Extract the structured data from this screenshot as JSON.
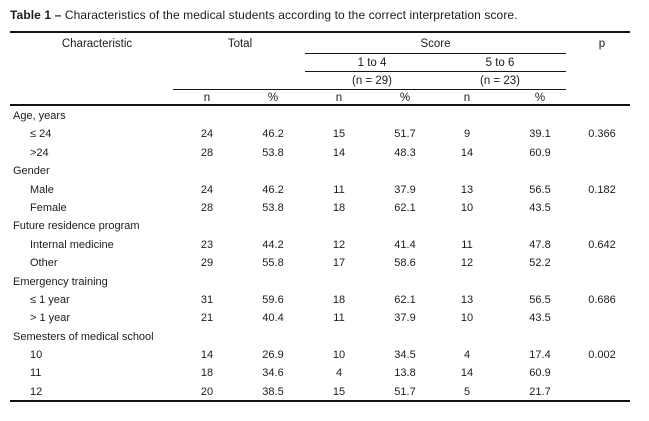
{
  "caption": {
    "label": "Table 1 –",
    "text": "Characteristics of the medical students according to the correct interpretation score."
  },
  "header": {
    "characteristic": "Characteristic",
    "total": "Total",
    "score": "Score",
    "p": "p",
    "score_groups": [
      {
        "range": "1 to 4",
        "n_label": "(n = 29)"
      },
      {
        "range": "5 to 6",
        "n_label": "(n = 23)"
      }
    ],
    "sub_columns": [
      "n",
      "%",
      "n",
      "%",
      "n",
      "%"
    ]
  },
  "rows": [
    {
      "type": "group",
      "label": "Age, years",
      "cells": [
        "",
        "",
        "",
        "",
        "",
        "",
        ""
      ]
    },
    {
      "type": "item",
      "label": "≤ 24",
      "cells": [
        "24",
        "46.2",
        "15",
        "51.7",
        "9",
        "39.1",
        "0.366"
      ]
    },
    {
      "type": "item",
      "label": ">24",
      "cells": [
        "28",
        "53.8",
        "14",
        "48.3",
        "14",
        "60.9",
        ""
      ]
    },
    {
      "type": "group",
      "label": "Gender",
      "cells": [
        "",
        "",
        "",
        "",
        "",
        "",
        ""
      ]
    },
    {
      "type": "item",
      "label": "Male",
      "cells": [
        "24",
        "46.2",
        "11",
        "37.9",
        "13",
        "56.5",
        "0.182"
      ]
    },
    {
      "type": "item",
      "label": "Female",
      "cells": [
        "28",
        "53.8",
        "18",
        "62.1",
        "10",
        "43.5",
        ""
      ]
    },
    {
      "type": "group",
      "label": "Future residence program",
      "cells": [
        "",
        "",
        "",
        "",
        "",
        "",
        ""
      ]
    },
    {
      "type": "item",
      "label": "Internal medicine",
      "cells": [
        "23",
        "44.2",
        "12",
        "41.4",
        "11",
        "47.8",
        "0.642"
      ]
    },
    {
      "type": "item",
      "label": "Other",
      "cells": [
        "29",
        "55.8",
        "17",
        "58.6",
        "12",
        "52.2",
        ""
      ]
    },
    {
      "type": "group",
      "label": "Emergency training",
      "cells": [
        "",
        "",
        "",
        "",
        "",
        "",
        ""
      ]
    },
    {
      "type": "item",
      "label": "≤ 1 year",
      "cells": [
        "31",
        "59.6",
        "18",
        "62.1",
        "13",
        "56.5",
        "0.686"
      ]
    },
    {
      "type": "item",
      "label": "> 1 year",
      "cells": [
        "21",
        "40.4",
        "11",
        "37.9",
        "10",
        "43.5",
        ""
      ]
    },
    {
      "type": "group",
      "label": "Semesters of medical school",
      "cells": [
        "",
        "",
        "",
        "",
        "",
        "",
        ""
      ]
    },
    {
      "type": "item",
      "label": "10",
      "cells": [
        "14",
        "26.9",
        "10",
        "34.5",
        "4",
        "17.4",
        "0.002"
      ]
    },
    {
      "type": "item",
      "label": "11",
      "cells": [
        "18",
        "34.6",
        "4",
        "13.8",
        "14",
        "60.9",
        ""
      ]
    },
    {
      "type": "item",
      "label": "12",
      "cells": [
        "20",
        "38.5",
        "15",
        "51.7",
        "5",
        "21.7",
        ""
      ]
    }
  ],
  "colors": {
    "text": "#1c1c1c",
    "rule": "#141414",
    "background": "#ffffff"
  }
}
